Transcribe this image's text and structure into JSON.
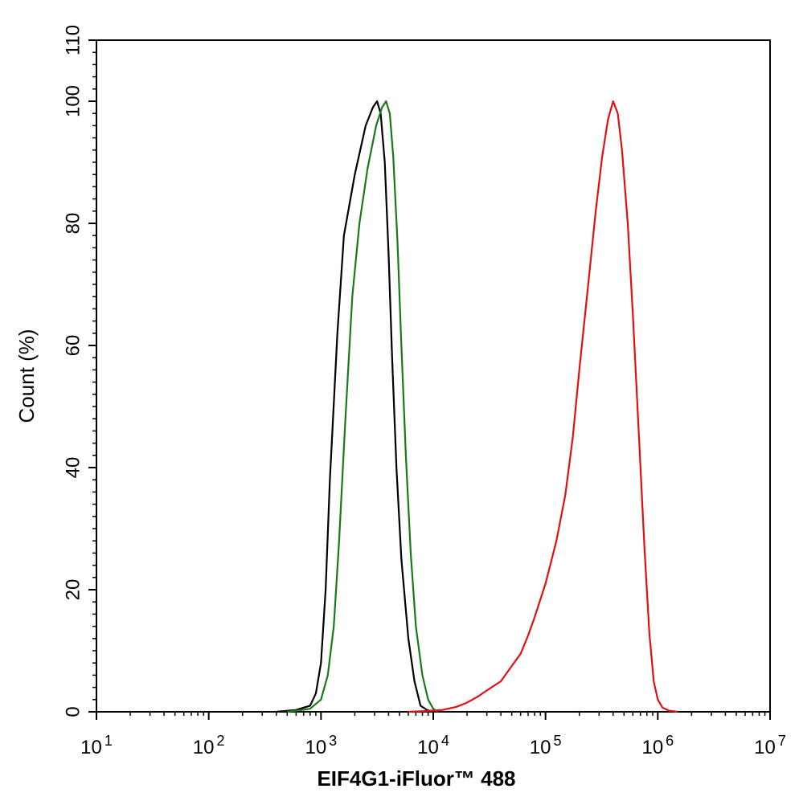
{
  "chart_data": {
    "type": "line",
    "title": "",
    "xlabel": "EIF4G1-iFluor™ 488",
    "ylabel": "Count  (%)",
    "xscale": "log",
    "xlim": [
      10,
      10000000
    ],
    "ylim": [
      0,
      110
    ],
    "grid": false,
    "x_ticks": [
      {
        "value": 10,
        "base": "10",
        "exp": "1"
      },
      {
        "value": 100,
        "base": "10",
        "exp": "2"
      },
      {
        "value": 1000,
        "base": "10",
        "exp": "3"
      },
      {
        "value": 10000,
        "base": "10",
        "exp": "4"
      },
      {
        "value": 100000,
        "base": "10",
        "exp": "5"
      },
      {
        "value": 1000000,
        "base": "10",
        "exp": "6"
      },
      {
        "value": 10000000,
        "base": "10",
        "exp": "7"
      }
    ],
    "y_ticks": [
      {
        "value": 0,
        "label": "0"
      },
      {
        "value": 20,
        "label": "20"
      },
      {
        "value": 40,
        "label": "40"
      },
      {
        "value": 60,
        "label": "60"
      },
      {
        "value": 80,
        "label": "80"
      },
      {
        "value": 100,
        "label": "100"
      },
      {
        "value": 110,
        "label": "110"
      }
    ],
    "series": [
      {
        "color": "#000000",
        "points": [
          [
            400,
            0
          ],
          [
            600,
            0.3
          ],
          [
            800,
            1
          ],
          [
            900,
            3
          ],
          [
            1000,
            8
          ],
          [
            1100,
            20
          ],
          [
            1200,
            38
          ],
          [
            1400,
            62
          ],
          [
            1600,
            78
          ],
          [
            2000,
            88
          ],
          [
            2500,
            96
          ],
          [
            2900,
            99
          ],
          [
            3160,
            100
          ],
          [
            3400,
            98
          ],
          [
            3700,
            90
          ],
          [
            4000,
            75
          ],
          [
            4300,
            58
          ],
          [
            4700,
            40
          ],
          [
            5200,
            25
          ],
          [
            6000,
            12
          ],
          [
            6800,
            5
          ],
          [
            7700,
            1
          ],
          [
            8800,
            0.3
          ],
          [
            10000,
            0
          ]
        ]
      },
      {
        "color": "#1a7a1a",
        "points": [
          [
            500,
            0
          ],
          [
            800,
            0.5
          ],
          [
            1000,
            2
          ],
          [
            1150,
            6
          ],
          [
            1300,
            14
          ],
          [
            1450,
            28
          ],
          [
            1650,
            48
          ],
          [
            1900,
            68
          ],
          [
            2200,
            80
          ],
          [
            2600,
            89
          ],
          [
            3100,
            96
          ],
          [
            3500,
            99
          ],
          [
            3800,
            100
          ],
          [
            4100,
            98
          ],
          [
            4400,
            91
          ],
          [
            4800,
            77
          ],
          [
            5200,
            60
          ],
          [
            5700,
            42
          ],
          [
            6300,
            26
          ],
          [
            7000,
            14
          ],
          [
            8000,
            6
          ],
          [
            9000,
            2
          ],
          [
            10000,
            0.5
          ],
          [
            11000,
            0
          ]
        ]
      },
      {
        "color": "#e01010",
        "points": [
          [
            6000,
            0
          ],
          [
            8000,
            0.1
          ],
          [
            12000,
            0.3
          ],
          [
            16000,
            0.8
          ],
          [
            20000,
            1.5
          ],
          [
            25000,
            2.5
          ],
          [
            30000,
            3.5
          ],
          [
            40000,
            5
          ],
          [
            50000,
            7.5
          ],
          [
            60000,
            9.5
          ],
          [
            70000,
            12.5
          ],
          [
            80000,
            15.5
          ],
          [
            100000,
            21
          ],
          [
            125000,
            28
          ],
          [
            150000,
            35.5
          ],
          [
            175000,
            45
          ],
          [
            200000,
            56
          ],
          [
            240000,
            70
          ],
          [
            280000,
            82
          ],
          [
            320000,
            91
          ],
          [
            360000,
            97
          ],
          [
            400000,
            100
          ],
          [
            440000,
            98
          ],
          [
            480000,
            92
          ],
          [
            540000,
            80
          ],
          [
            600000,
            65
          ],
          [
            680000,
            45
          ],
          [
            760000,
            27
          ],
          [
            840000,
            13
          ],
          [
            920000,
            5
          ],
          [
            1000000,
            2
          ],
          [
            1100000,
            0.7
          ],
          [
            1250000,
            0.2
          ],
          [
            1500000,
            0
          ]
        ]
      }
    ]
  }
}
